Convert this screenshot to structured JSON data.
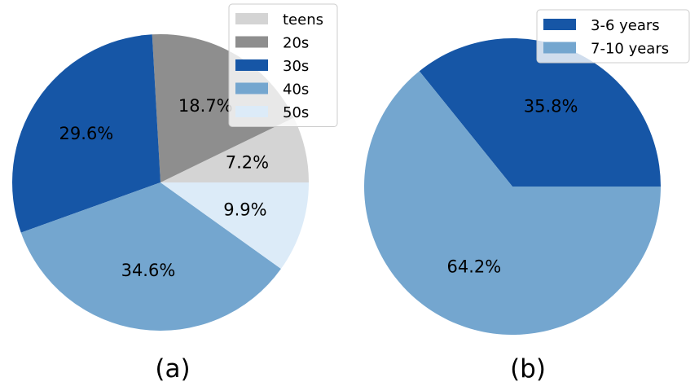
{
  "chart_data": [
    {
      "type": "pie",
      "caption": "(a)",
      "slices": [
        {
          "label": "teens",
          "value": 7.2,
          "pct_label": "7.2%",
          "color": "#d4d4d4"
        },
        {
          "label": "20s",
          "value": 18.7,
          "pct_label": "18.7%",
          "color": "#8e8e8e"
        },
        {
          "label": "30s",
          "value": 29.6,
          "pct_label": "29.6%",
          "color": "#1656a6"
        },
        {
          "label": "40s",
          "value": 34.6,
          "pct_label": "34.6%",
          "color": "#74a6cf"
        },
        {
          "label": "50s",
          "value": 9.9,
          "pct_label": "9.9%",
          "color": "#dcebf8"
        }
      ],
      "legend_position": "top-right",
      "start_angle_deg": 0,
      "direction": "counterclockwise"
    },
    {
      "type": "pie",
      "caption": "(b)",
      "slices": [
        {
          "label": "3-6 years",
          "value": 35.8,
          "pct_label": "35.8%",
          "color": "#1656a6"
        },
        {
          "label": "7-10 years",
          "value": 64.2,
          "pct_label": "64.2%",
          "color": "#74a6cf"
        }
      ],
      "legend_position": "top-right",
      "start_angle_deg": 0,
      "direction": "counterclockwise"
    }
  ]
}
